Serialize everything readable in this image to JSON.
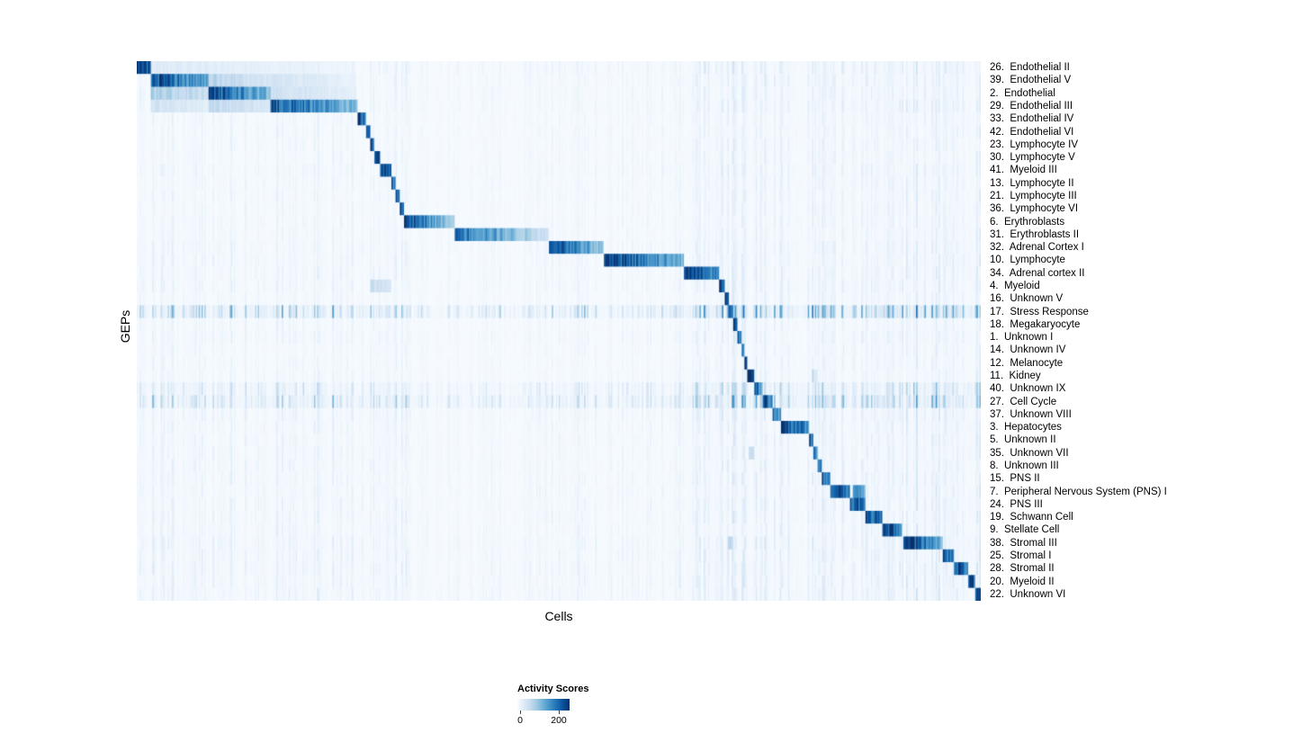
{
  "figure": {
    "xlabel": "Cells",
    "ylabel": "GEPs"
  },
  "chart_data": {
    "type": "heatmap",
    "title": "",
    "xlabel": "Cells",
    "ylabel": "GEPs",
    "n_cols": 600,
    "value_max": 235,
    "colorbar": {
      "label": "Activity Scores",
      "min": 0,
      "max": 200,
      "colormap": "Blues",
      "tick_labels": [
        "0",
        "200"
      ]
    },
    "colormap_stops": [
      [
        247,
        251,
        255
      ],
      [
        222,
        235,
        247
      ],
      [
        198,
        219,
        239
      ],
      [
        158,
        202,
        225
      ],
      [
        107,
        174,
        214
      ],
      [
        66,
        146,
        198
      ],
      [
        33,
        113,
        181
      ],
      [
        8,
        81,
        156
      ],
      [
        8,
        48,
        107
      ]
    ],
    "column_streaks": [
      [
        0.0,
        0.016,
        1.2
      ],
      [
        0.016,
        0.09,
        1.5
      ],
      [
        0.09,
        0.16,
        1.4
      ],
      [
        0.16,
        0.26,
        1.5
      ],
      [
        0.26,
        0.32,
        1.7
      ],
      [
        0.32,
        0.49,
        0.9
      ],
      [
        0.49,
        0.56,
        1.1
      ],
      [
        0.56,
        0.65,
        1.0
      ],
      [
        0.65,
        0.69,
        1.9
      ],
      [
        0.69,
        0.72,
        2.3
      ],
      [
        0.72,
        0.77,
        1.7
      ],
      [
        0.77,
        0.82,
        2.1
      ],
      [
        0.82,
        0.91,
        1.6
      ],
      [
        0.91,
        1.001,
        2.6
      ]
    ],
    "rows": [
      {
        "label": "26.  Endothelial II",
        "base": 6,
        "blocks": [
          [
            0.0,
            0.016,
            230,
            180
          ],
          [
            0.016,
            0.26,
            30,
            10
          ]
        ]
      },
      {
        "label": "39.  Endothelial V",
        "base": 5,
        "blocks": [
          [
            0.016,
            0.085,
            215,
            120
          ],
          [
            0.085,
            0.155,
            70,
            35
          ],
          [
            0.155,
            0.26,
            45,
            15
          ]
        ]
      },
      {
        "label": "2.  Endothelial",
        "base": 5,
        "blocks": [
          [
            0.016,
            0.085,
            80,
            50
          ],
          [
            0.085,
            0.158,
            210,
            110
          ],
          [
            0.158,
            0.26,
            50,
            20
          ]
        ]
      },
      {
        "label": "29.  Endothelial III",
        "base": 5,
        "blocks": [
          [
            0.016,
            0.085,
            45,
            25
          ],
          [
            0.085,
            0.158,
            60,
            35
          ],
          [
            0.158,
            0.262,
            210,
            100
          ]
        ]
      },
      {
        "label": "33.  Endothelial IV",
        "base": 4,
        "blocks": [
          [
            0.262,
            0.271,
            220,
            160
          ]
        ]
      },
      {
        "label": "42.  Endothelial VI",
        "base": 4,
        "blocks": [
          [
            0.271,
            0.277,
            220,
            170
          ]
        ]
      },
      {
        "label": "23.  Lymphocyte IV",
        "base": 4,
        "blocks": [
          [
            0.277,
            0.282,
            210,
            160
          ]
        ]
      },
      {
        "label": "30.  Lymphocyte V",
        "base": 4,
        "blocks": [
          [
            0.282,
            0.288,
            220,
            170
          ]
        ]
      },
      {
        "label": "41.  Myeloid III",
        "base": 5,
        "blocks": [
          [
            0.288,
            0.301,
            230,
            170
          ]
        ]
      },
      {
        "label": "13.  Lymphocyte II",
        "base": 4,
        "blocks": [
          [
            0.301,
            0.307,
            220,
            170
          ]
        ]
      },
      {
        "label": "21.  Lymphocyte III",
        "base": 4,
        "blocks": [
          [
            0.307,
            0.312,
            210,
            160
          ]
        ]
      },
      {
        "label": "36.  Lymphocyte VI",
        "base": 4,
        "blocks": [
          [
            0.312,
            0.317,
            210,
            160
          ]
        ]
      },
      {
        "label": "6.  Erythroblasts",
        "base": 4,
        "blocks": [
          [
            0.317,
            0.376,
            220,
            70
          ]
        ]
      },
      {
        "label": "31.  Erythroblasts II",
        "base": 4,
        "blocks": [
          [
            0.376,
            0.488,
            190,
            45
          ]
        ]
      },
      {
        "label": "32.  Adrenal Cortex I",
        "base": 5,
        "blocks": [
          [
            0.488,
            0.554,
            230,
            80
          ]
        ]
      },
      {
        "label": "10.  Lymphocyte",
        "base": 5,
        "blocks": [
          [
            0.554,
            0.648,
            230,
            110
          ]
        ]
      },
      {
        "label": "34.  Adrenal cortex II",
        "base": 5,
        "blocks": [
          [
            0.648,
            0.69,
            230,
            140
          ]
        ]
      },
      {
        "label": "4.  Myeloid",
        "base": 5,
        "blocks": [
          [
            0.69,
            0.697,
            220,
            180
          ],
          [
            0.277,
            0.302,
            55,
            30
          ]
        ]
      },
      {
        "label": "16.  Unknown V",
        "base": 4,
        "blocks": [
          [
            0.697,
            0.702,
            220,
            180
          ]
        ]
      },
      {
        "label": "17.  Stress Response",
        "base": 26,
        "blocks": [
          [
            0.702,
            0.707,
            230,
            190
          ]
        ]
      },
      {
        "label": "18.  Megakaryocyte",
        "base": 4,
        "blocks": [
          [
            0.707,
            0.712,
            220,
            180
          ]
        ]
      },
      {
        "label": "1.  Unknown I",
        "base": 5,
        "blocks": [
          [
            0.712,
            0.716,
            210,
            170
          ]
        ]
      },
      {
        "label": "14.  Unknown IV",
        "base": 4,
        "blocks": [
          [
            0.716,
            0.72,
            210,
            170
          ]
        ]
      },
      {
        "label": "12.  Melanocyte",
        "base": 4,
        "blocks": [
          [
            0.72,
            0.724,
            220,
            180
          ]
        ]
      },
      {
        "label": "11.  Kidney",
        "base": 4,
        "blocks": [
          [
            0.724,
            0.732,
            230,
            180
          ],
          [
            0.8,
            0.806,
            60,
            30
          ]
        ]
      },
      {
        "label": "40.  Unknown IX",
        "base": 14,
        "blocks": [
          [
            0.732,
            0.742,
            200,
            120
          ]
        ]
      },
      {
        "label": "27.  Cell Cycle",
        "base": 20,
        "blocks": [
          [
            0.742,
            0.753,
            220,
            150
          ]
        ]
      },
      {
        "label": "37.  Unknown VIII",
        "base": 6,
        "blocks": [
          [
            0.753,
            0.763,
            200,
            130
          ]
        ]
      },
      {
        "label": "3.  Hepatocytes",
        "base": 5,
        "blocks": [
          [
            0.763,
            0.796,
            230,
            150
          ]
        ]
      },
      {
        "label": "5.  Unknown II",
        "base": 5,
        "blocks": [
          [
            0.796,
            0.801,
            220,
            180
          ]
        ]
      },
      {
        "label": "35.  Unknown VII",
        "base": 5,
        "blocks": [
          [
            0.801,
            0.806,
            210,
            170
          ],
          [
            0.725,
            0.732,
            70,
            40
          ]
        ]
      },
      {
        "label": "8.  Unknown III",
        "base": 5,
        "blocks": [
          [
            0.806,
            0.811,
            200,
            160
          ]
        ]
      },
      {
        "label": "15.  PNS II",
        "base": 5,
        "blocks": [
          [
            0.811,
            0.821,
            210,
            150
          ]
        ]
      },
      {
        "label": "7.  Peripheral Nervous System (PNS) I",
        "base": 5,
        "blocks": [
          [
            0.821,
            0.845,
            230,
            170
          ],
          [
            0.848,
            0.863,
            160,
            100
          ]
        ]
      },
      {
        "label": "24.  PNS III",
        "base": 5,
        "blocks": [
          [
            0.845,
            0.863,
            220,
            150
          ]
        ]
      },
      {
        "label": "19.  Schwann Cell",
        "base": 5,
        "blocks": [
          [
            0.863,
            0.883,
            230,
            160
          ]
        ]
      },
      {
        "label": "9.  Stellate Cell",
        "base": 5,
        "blocks": [
          [
            0.883,
            0.906,
            230,
            160
          ]
        ]
      },
      {
        "label": "38.  Stromal III",
        "base": 6,
        "blocks": [
          [
            0.908,
            0.955,
            230,
            120
          ],
          [
            0.7,
            0.707,
            70,
            40
          ]
        ]
      },
      {
        "label": "25.  Stromal I",
        "base": 6,
        "blocks": [
          [
            0.955,
            0.968,
            220,
            160
          ]
        ]
      },
      {
        "label": "28.  Stromal II",
        "base": 6,
        "blocks": [
          [
            0.968,
            0.985,
            230,
            170
          ]
        ]
      },
      {
        "label": "20.  Myeloid II",
        "base": 6,
        "blocks": [
          [
            0.985,
            0.993,
            220,
            180
          ]
        ]
      },
      {
        "label": "22.  Unknown VI",
        "base": 6,
        "blocks": [
          [
            0.993,
            1.001,
            230,
            200
          ]
        ]
      }
    ]
  }
}
